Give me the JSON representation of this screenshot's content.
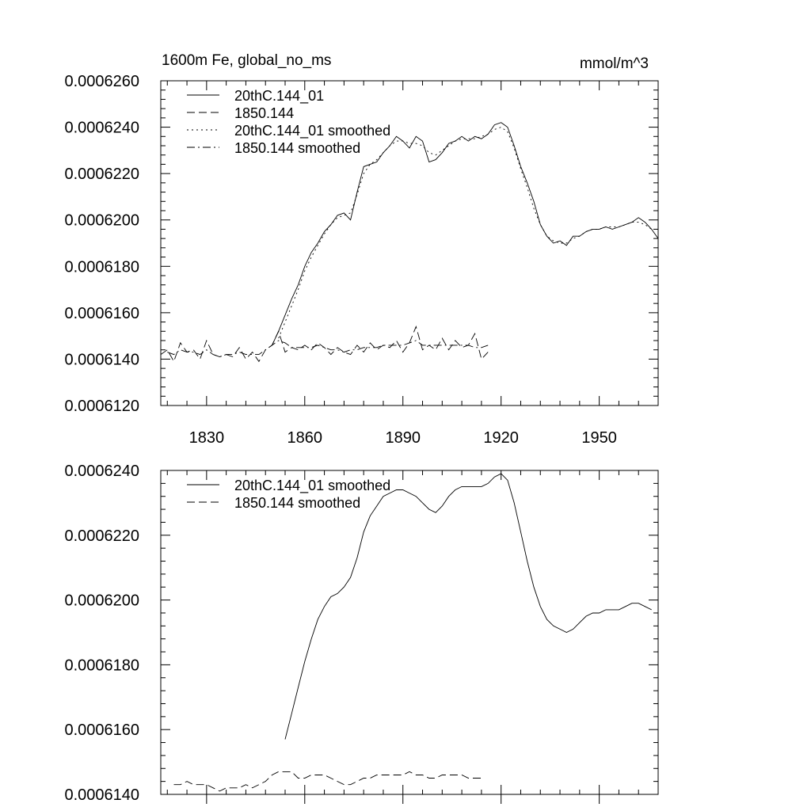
{
  "chart_data": [
    {
      "type": "line",
      "title": "1600m Fe, global_no_ms",
      "units": "mmol/m^3",
      "xlim": [
        1816,
        1968
      ],
      "ylim": [
        0.000612,
        0.000626
      ],
      "xticks": [
        1830,
        1860,
        1890,
        1920,
        1950
      ],
      "xtick_labels": [
        "1830",
        "1860",
        "1890",
        "1920",
        "1950"
      ],
      "yticks": [
        0.000612,
        0.000614,
        0.000616,
        0.000618,
        0.00062,
        0.000622,
        0.000624,
        0.000626
      ],
      "ytick_labels": [
        "0.0006120",
        "0.0006140",
        "0.0006160",
        "0.0006180",
        "0.0006200",
        "0.0006220",
        "0.0006240",
        "0.0006260"
      ],
      "grid": false,
      "legend_position": "top-left",
      "series": [
        {
          "name": "20thC.144_01",
          "dash": "solid",
          "x": [
            1850,
            1852,
            1854,
            1856,
            1858,
            1860,
            1862,
            1864,
            1866,
            1868,
            1870,
            1872,
            1874,
            1876,
            1878,
            1880,
            1882,
            1884,
            1886,
            1888,
            1890,
            1892,
            1894,
            1896,
            1898,
            1900,
            1902,
            1904,
            1906,
            1908,
            1910,
            1912,
            1914,
            1916,
            1918,
            1920,
            1922,
            1924,
            1926,
            1928,
            1930,
            1932,
            1934,
            1936,
            1938,
            1940,
            1942,
            1944,
            1946,
            1948,
            1950,
            1952,
            1954,
            1956,
            1958,
            1960,
            1962,
            1964,
            1966,
            1968
          ],
          "y": [
            0.0006146,
            0.0006152,
            0.0006159,
            0.0006166,
            0.0006172,
            0.000618,
            0.0006186,
            0.000619,
            0.0006195,
            0.0006198,
            0.0006202,
            0.0006203,
            0.00062,
            0.0006212,
            0.0006223,
            0.0006224,
            0.0006225,
            0.0006229,
            0.0006232,
            0.0006236,
            0.0006234,
            0.0006231,
            0.0006236,
            0.0006234,
            0.0006225,
            0.0006226,
            0.0006229,
            0.0006233,
            0.0006234,
            0.0006236,
            0.0006234,
            0.0006236,
            0.0006235,
            0.0006237,
            0.0006241,
            0.0006242,
            0.000624,
            0.0006232,
            0.0006223,
            0.0006216,
            0.0006208,
            0.0006198,
            0.0006193,
            0.000619,
            0.0006191,
            0.0006189,
            0.0006193,
            0.0006193,
            0.0006195,
            0.0006196,
            0.0006196,
            0.0006197,
            0.0006196,
            0.0006197,
            0.0006198,
            0.0006199,
            0.0006201,
            0.0006199,
            0.0006196,
            0.0006192
          ]
        },
        {
          "name": "1850.144",
          "dash": "long-dash",
          "x": [
            1816,
            1818,
            1820,
            1822,
            1824,
            1826,
            1828,
            1830,
            1832,
            1834,
            1836,
            1838,
            1840,
            1842,
            1844,
            1846,
            1848,
            1850,
            1852,
            1854,
            1856,
            1858,
            1860,
            1862,
            1864,
            1866,
            1868,
            1870,
            1872,
            1874,
            1876,
            1878,
            1880,
            1882,
            1884,
            1886,
            1888,
            1890,
            1892,
            1894,
            1896,
            1898,
            1900,
            1902,
            1904,
            1906,
            1908,
            1910,
            1912,
            1914,
            1916
          ],
          "y": [
            0.0006142,
            0.0006144,
            0.0006139,
            0.0006147,
            0.0006143,
            0.0006144,
            0.000614,
            0.0006148,
            0.0006142,
            0.0006141,
            0.0006142,
            0.0006141,
            0.0006145,
            0.000614,
            0.0006143,
            0.0006139,
            0.0006144,
            0.0006146,
            0.0006152,
            0.0006143,
            0.0006145,
            0.0006144,
            0.0006146,
            0.0006144,
            0.0006147,
            0.0006145,
            0.0006142,
            0.0006145,
            0.0006143,
            0.0006142,
            0.0006146,
            0.0006143,
            0.0006147,
            0.0006144,
            0.0006146,
            0.0006145,
            0.0006148,
            0.0006143,
            0.0006147,
            0.0006154,
            0.0006144,
            0.0006146,
            0.0006144,
            0.0006149,
            0.0006144,
            0.0006148,
            0.0006145,
            0.0006146,
            0.0006151,
            0.000614,
            0.0006143
          ]
        },
        {
          "name": "20thC.144_01 smoothed",
          "dash": "dotted",
          "x": [
            1852,
            1854,
            1856,
            1858,
            1860,
            1862,
            1864,
            1866,
            1868,
            1870,
            1872,
            1874,
            1876,
            1878,
            1880,
            1882,
            1884,
            1886,
            1888,
            1890,
            1892,
            1894,
            1896,
            1898,
            1900,
            1902,
            1904,
            1906,
            1908,
            1910,
            1912,
            1914,
            1916,
            1918,
            1920,
            1922,
            1924,
            1926,
            1928,
            1930,
            1932,
            1934,
            1936,
            1938,
            1940,
            1942,
            1944,
            1946,
            1948,
            1950,
            1952,
            1954,
            1956,
            1958,
            1960,
            1962,
            1964,
            1966
          ],
          "y": [
            0.0006149,
            0.0006156,
            0.0006163,
            0.000617,
            0.0006178,
            0.0006184,
            0.0006189,
            0.0006194,
            0.0006198,
            0.0006201,
            0.0006202,
            0.0006203,
            0.0006211,
            0.000622,
            0.0006224,
            0.0006226,
            0.0006229,
            0.0006232,
            0.0006234,
            0.0006234,
            0.0006233,
            0.0006233,
            0.0006232,
            0.0006229,
            0.0006228,
            0.000623,
            0.0006232,
            0.0006234,
            0.0006235,
            0.0006235,
            0.0006235,
            0.0006236,
            0.0006237,
            0.0006239,
            0.000624,
            0.0006238,
            0.0006231,
            0.0006222,
            0.0006214,
            0.0006205,
            0.0006198,
            0.0006193,
            0.0006191,
            0.000619,
            0.000619,
            0.0006192,
            0.0006193,
            0.0006195,
            0.0006196,
            0.0006196,
            0.0006197,
            0.0006197,
            0.0006197,
            0.0006198,
            0.0006199,
            0.0006199,
            0.0006198,
            0.0006196
          ]
        },
        {
          "name": "1850.144 smoothed",
          "dash": "dash-dot",
          "x": [
            1818,
            1820,
            1822,
            1824,
            1826,
            1828,
            1830,
            1832,
            1834,
            1836,
            1838,
            1840,
            1842,
            1844,
            1846,
            1848,
            1850,
            1852,
            1854,
            1856,
            1858,
            1860,
            1862,
            1864,
            1866,
            1868,
            1870,
            1872,
            1874,
            1876,
            1878,
            1880,
            1882,
            1884,
            1886,
            1888,
            1890,
            1892,
            1894,
            1896,
            1898,
            1900,
            1902,
            1904,
            1906,
            1908,
            1910,
            1912,
            1914,
            1916
          ],
          "y": [
            0.0006143,
            0.0006142,
            0.0006144,
            0.0006143,
            0.0006143,
            0.0006142,
            0.0006144,
            0.0006142,
            0.0006141,
            0.0006142,
            0.0006142,
            0.0006143,
            0.0006142,
            0.0006142,
            0.0006142,
            0.0006144,
            0.0006146,
            0.0006148,
            0.0006147,
            0.0006145,
            0.0006145,
            0.0006145,
            0.0006145,
            0.0006146,
            0.0006145,
            0.0006144,
            0.0006144,
            0.0006143,
            0.0006144,
            0.0006144,
            0.0006145,
            0.0006145,
            0.0006145,
            0.0006146,
            0.0006146,
            0.0006146,
            0.0006146,
            0.0006147,
            0.0006148,
            0.0006146,
            0.0006146,
            0.0006146,
            0.0006146,
            0.0006146,
            0.0006146,
            0.0006146,
            0.0006146,
            0.0006145,
            0.0006145,
            0.0006146
          ]
        }
      ]
    },
    {
      "type": "line",
      "xlim": [
        1816,
        1968
      ],
      "ylim": [
        0.000614,
        0.000624
      ],
      "xticks": [
        1830,
        1860,
        1890,
        1920,
        1950
      ],
      "yticks": [
        0.000614,
        0.000616,
        0.000618,
        0.00062,
        0.000622,
        0.000624
      ],
      "ytick_labels": [
        "0.0006140",
        "0.0006160",
        "0.0006180",
        "0.0006200",
        "0.0006220",
        "0.0006240"
      ],
      "grid": false,
      "legend_position": "top-left",
      "series": [
        {
          "name": "20thC.144_01 smoothed",
          "dash": "solid",
          "x": [
            1854,
            1856,
            1858,
            1860,
            1862,
            1864,
            1866,
            1868,
            1870,
            1872,
            1874,
            1876,
            1878,
            1880,
            1882,
            1884,
            1886,
            1888,
            1890,
            1892,
            1894,
            1896,
            1898,
            1900,
            1902,
            1904,
            1906,
            1908,
            1910,
            1912,
            1914,
            1916,
            1918,
            1920,
            1922,
            1924,
            1926,
            1928,
            1930,
            1932,
            1934,
            1936,
            1938,
            1940,
            1942,
            1944,
            1946,
            1948,
            1950,
            1952,
            1954,
            1956,
            1958,
            1960,
            1962,
            1964,
            1966
          ],
          "y": [
            0.0006157,
            0.0006165,
            0.0006173,
            0.0006181,
            0.0006188,
            0.0006194,
            0.0006198,
            0.0006201,
            0.0006202,
            0.0006204,
            0.0006207,
            0.0006213,
            0.0006221,
            0.0006226,
            0.0006229,
            0.0006232,
            0.0006233,
            0.0006234,
            0.0006234,
            0.0006233,
            0.0006232,
            0.000623,
            0.0006228,
            0.0006227,
            0.0006229,
            0.0006232,
            0.0006234,
            0.0006235,
            0.0006235,
            0.0006235,
            0.0006235,
            0.0006236,
            0.0006238,
            0.0006239,
            0.0006237,
            0.000623,
            0.0006221,
            0.0006212,
            0.0006204,
            0.0006198,
            0.0006194,
            0.0006192,
            0.0006191,
            0.000619,
            0.0006191,
            0.0006193,
            0.0006195,
            0.0006196,
            0.0006196,
            0.0006197,
            0.0006197,
            0.0006197,
            0.0006198,
            0.0006199,
            0.0006199,
            0.0006198,
            0.0006197
          ]
        },
        {
          "name": "1850.144 smoothed",
          "dash": "long-dash",
          "x": [
            1820,
            1822,
            1824,
            1826,
            1828,
            1830,
            1832,
            1834,
            1836,
            1838,
            1840,
            1842,
            1844,
            1846,
            1848,
            1850,
            1852,
            1854,
            1856,
            1858,
            1860,
            1862,
            1864,
            1866,
            1868,
            1870,
            1872,
            1874,
            1876,
            1878,
            1880,
            1882,
            1884,
            1886,
            1888,
            1890,
            1892,
            1894,
            1896,
            1898,
            1900,
            1902,
            1904,
            1906,
            1908,
            1910,
            1912,
            1914
          ],
          "y": [
            0.0006143,
            0.0006143,
            0.0006144,
            0.0006143,
            0.0006143,
            0.0006143,
            0.0006142,
            0.0006141,
            0.0006142,
            0.0006142,
            0.0006142,
            0.0006143,
            0.0006142,
            0.0006143,
            0.0006144,
            0.0006146,
            0.0006147,
            0.0006147,
            0.0006147,
            0.0006145,
            0.0006145,
            0.0006146,
            0.0006146,
            0.0006146,
            0.0006145,
            0.0006144,
            0.0006143,
            0.0006143,
            0.0006144,
            0.0006145,
            0.0006145,
            0.0006146,
            0.0006146,
            0.0006146,
            0.0006146,
            0.0006146,
            0.0006147,
            0.0006146,
            0.0006146,
            0.0006145,
            0.0006145,
            0.0006146,
            0.0006146,
            0.0006146,
            0.0006146,
            0.0006145,
            0.0006145,
            0.0006145
          ]
        }
      ]
    }
  ]
}
